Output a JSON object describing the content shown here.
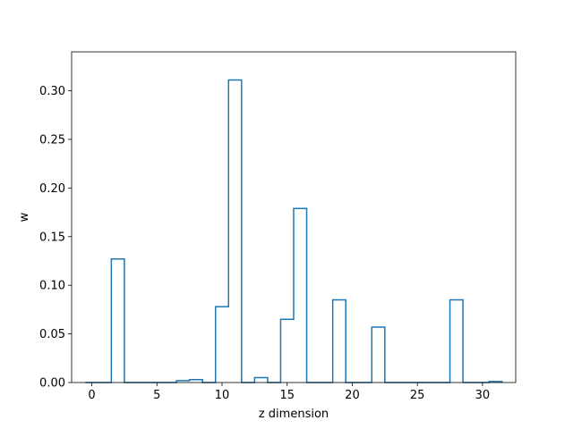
{
  "chart_data": {
    "type": "bar",
    "style": "step-histogram (unfilled outlined bars)",
    "title": "",
    "xlabel": "z dimension",
    "ylabel": "w",
    "xlim": [
      -1.55,
      32.55
    ],
    "ylim": [
      0.0,
      0.34
    ],
    "xticks": [
      0,
      5,
      10,
      15,
      20,
      25,
      30
    ],
    "yticks": [
      0.0,
      0.05,
      0.1,
      0.15,
      0.2,
      0.25,
      0.3
    ],
    "xtick_labels": [
      "0",
      "5",
      "10",
      "15",
      "20",
      "25",
      "30"
    ],
    "ytick_labels": [
      "0.00",
      "0.05",
      "0.10",
      "0.15",
      "0.20",
      "0.25",
      "0.30"
    ],
    "grid": false,
    "legend": "none",
    "bin_width": 1,
    "x": [
      0,
      1,
      2,
      3,
      4,
      5,
      6,
      7,
      8,
      9,
      10,
      11,
      12,
      13,
      14,
      15,
      16,
      17,
      18,
      19,
      20,
      21,
      22,
      23,
      24,
      25,
      26,
      27,
      28,
      29,
      30,
      31
    ],
    "values": [
      0.0,
      0.0,
      0.127,
      0.0,
      0.0,
      0.0,
      0.0,
      0.002,
      0.003,
      0.0,
      0.078,
      0.311,
      0.0,
      0.005,
      0.0,
      0.065,
      0.179,
      0.0,
      0.0,
      0.085,
      0.0,
      0.0,
      0.057,
      0.0,
      0.0,
      0.0,
      0.0,
      0.0,
      0.085,
      0.0,
      0.0,
      0.001
    ],
    "color": "#1f77b4"
  }
}
